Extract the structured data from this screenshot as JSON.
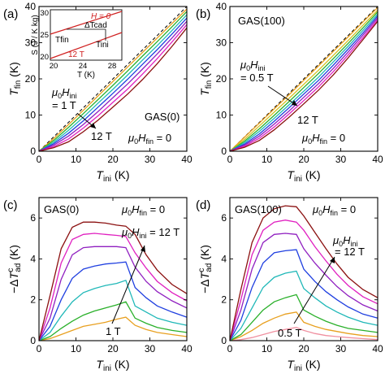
{
  "colors": [
    "#e8a020",
    "#2ab02a",
    "#20b8b8",
    "#2040e0",
    "#9020c0",
    "#e020c0",
    "#8b1010"
  ],
  "chart_data": [
    {
      "type": "line",
      "panel_label": "(a)",
      "xlabel": "T",
      "xlabel_sub": "ini",
      "xlabel_unit": "(K)",
      "ylabel": "T",
      "ylabel_sub": "fin",
      "ylabel_unit": "(K)",
      "xlim": [
        0,
        40
      ],
      "ylim": [
        0,
        40
      ],
      "xticks": [
        "0",
        "10",
        "20",
        "30",
        "40"
      ],
      "yticks": [
        "0",
        "10",
        "20",
        "30",
        "40"
      ],
      "diagonal": true,
      "x": [
        0,
        4,
        8,
        12,
        16,
        20,
        24,
        28,
        32,
        36,
        40
      ],
      "series": [
        {
          "values": [
            0,
            3.5,
            7.4,
            11.3,
            15.3,
            19.3,
            23.3,
            27.3,
            31.3,
            35.3,
            39.3
          ]
        },
        {
          "values": [
            0,
            3,
            6.6,
            10.4,
            14.3,
            18.2,
            22.2,
            26.3,
            30.3,
            34.4,
            38.6
          ]
        },
        {
          "values": [
            0,
            2.5,
            5.8,
            9.4,
            13.3,
            17.1,
            21.1,
            25.2,
            29.2,
            33.4,
            37.7
          ]
        },
        {
          "values": [
            0,
            2.1,
            5,
            8.4,
            12.2,
            16,
            19.9,
            24,
            28.1,
            32.4,
            36.8
          ]
        },
        {
          "values": [
            0,
            1.7,
            4.2,
            7.4,
            11,
            14.8,
            18.6,
            22.7,
            26.9,
            31.3,
            35.9
          ]
        },
        {
          "values": [
            0,
            1.3,
            3.4,
            6.4,
            9.8,
            13.5,
            17.2,
            21.3,
            25.6,
            30.2,
            35
          ]
        },
        {
          "values": [
            0,
            1,
            2.6,
            5.4,
            8.6,
            12.2,
            15.8,
            19.8,
            24.2,
            29,
            34.1
          ]
        }
      ],
      "annotations": {
        "upper": "μ0Hini",
        "upper2": "= 1 T",
        "lower": "12 T",
        "sample": "GAS(0)",
        "field": "μ0Hfin = 0"
      },
      "inset": {
        "xlabel": "T (K)",
        "ylabel": "S (J / K kg)",
        "xlim": [
          20,
          30
        ],
        "ylim": [
          20,
          30
        ],
        "xticks": [
          "20",
          "24",
          "28"
        ],
        "yticks": [
          "20",
          "25",
          "30"
        ],
        "line_h0_label": "H = 0",
        "line_12t_label": "12 T",
        "delta_label": "ΔTcad",
        "tfin_label": "Tfin",
        "tini_label": "Tini"
      }
    },
    {
      "type": "line",
      "panel_label": "(b)",
      "xlabel": "T",
      "xlabel_sub": "ini",
      "xlabel_unit": "(K)",
      "ylabel": "T",
      "ylabel_sub": "fin",
      "ylabel_unit": "(K)",
      "xlim": [
        0,
        40
      ],
      "ylim": [
        0,
        40
      ],
      "xticks": [
        "0",
        "10",
        "20",
        "30",
        "40"
      ],
      "yticks": [
        "0",
        "10",
        "20",
        "30",
        "40"
      ],
      "diagonal": true,
      "x": [
        0,
        4,
        8,
        12,
        16,
        20,
        24,
        28,
        32,
        36,
        40
      ],
      "series": [
        {
          "values": [
            0,
            3.9,
            7.8,
            11.7,
            15.6,
            19.6,
            23.6,
            27.6,
            31.6,
            35.7,
            39.7
          ]
        },
        {
          "values": [
            0,
            3.3,
            7,
            10.8,
            14.6,
            18.5,
            22.4,
            26.5,
            30.6,
            34.8,
            39
          ]
        },
        {
          "values": [
            0,
            2.8,
            6.2,
            9.9,
            13.7,
            17.6,
            21.5,
            25.6,
            29.8,
            34.1,
            38.5
          ]
        },
        {
          "values": [
            0,
            2.4,
            5.5,
            9.1,
            12.8,
            16.6,
            20.5,
            24.7,
            29,
            33.4,
            37.9
          ]
        },
        {
          "values": [
            0,
            2,
            4.8,
            8.3,
            12,
            15.8,
            19.6,
            23.8,
            28.2,
            32.7,
            37.4
          ]
        },
        {
          "values": [
            0,
            1.7,
            4.2,
            7.5,
            11.1,
            14.9,
            18.7,
            22.9,
            27.4,
            32.1,
            36.9
          ]
        },
        {
          "values": [
            0,
            1.4,
            3.6,
            6.7,
            10.3,
            14,
            17.8,
            22,
            26.6,
            31.4,
            36.4
          ]
        },
        {
          "values": [
            0,
            1.1,
            3,
            5.9,
            9.4,
            13.1,
            16.9,
            21.1,
            25.8,
            30.8,
            35.9
          ]
        }
      ],
      "annotations": {
        "upper": "μ0Hini",
        "upper2": "= 0.5 T",
        "lower": "12 T",
        "sample": "GAS(100)",
        "field": "μ0Hfin = 0"
      }
    },
    {
      "type": "line",
      "panel_label": "(c)",
      "xlabel": "T",
      "xlabel_sub": "ini",
      "xlabel_unit": "(K)",
      "ylabel": "−ΔTcad",
      "ylabel_unit": "(K)",
      "xlim": [
        0,
        40
      ],
      "ylim": [
        0,
        7
      ],
      "xticks": [
        "0",
        "10",
        "20",
        "30",
        "40"
      ],
      "yticks": [
        "0",
        "2",
        "4",
        "6"
      ],
      "x": [
        0,
        3,
        6,
        9,
        12,
        15,
        18,
        21,
        23.5,
        26,
        29,
        32,
        36,
        40
      ],
      "series": [
        {
          "values": [
            0,
            0.1,
            0.3,
            0.5,
            0.7,
            0.8,
            0.9,
            1.05,
            1.15,
            0.75,
            0.55,
            0.4,
            0.3,
            0.2
          ]
        },
        {
          "values": [
            0,
            0.2,
            0.6,
            0.95,
            1.25,
            1.45,
            1.6,
            1.75,
            1.9,
            1.1,
            0.85,
            0.65,
            0.5,
            0.4
          ]
        },
        {
          "values": [
            0,
            0.4,
            1.2,
            1.9,
            2.35,
            2.55,
            2.7,
            2.8,
            2.95,
            1.7,
            1.4,
            1.1,
            0.9,
            0.75
          ]
        },
        {
          "values": [
            0,
            0.7,
            2,
            3.05,
            3.5,
            3.65,
            3.75,
            3.8,
            3.85,
            2.6,
            2.1,
            1.7,
            1.4,
            1.15
          ]
        },
        {
          "values": [
            0,
            1.1,
            3,
            4.2,
            4.55,
            4.6,
            4.6,
            4.6,
            4.55,
            3.6,
            2.9,
            2.4,
            1.95,
            1.6
          ]
        },
        {
          "values": [
            0,
            1.6,
            3.8,
            4.95,
            5.2,
            5.25,
            5.2,
            5.15,
            5.1,
            4.3,
            3.55,
            2.9,
            2.35,
            1.95
          ]
        },
        {
          "values": [
            0,
            2.2,
            4.5,
            5.55,
            5.8,
            5.8,
            5.75,
            5.65,
            5.6,
            5.2,
            4.2,
            3.45,
            2.75,
            2.3
          ]
        }
      ],
      "annotations": {
        "sample": "GAS(0)",
        "field": "μ0Hfin = 0",
        "upper": "μ0Hini = 12 T",
        "lower": "1 T"
      }
    },
    {
      "type": "line",
      "panel_label": "(d)",
      "xlabel": "T",
      "xlabel_sub": "ini",
      "xlabel_unit": "(K)",
      "ylabel": "−ΔTcad",
      "ylabel_unit": "(K)",
      "xlim": [
        0,
        40
      ],
      "ylim": [
        0,
        7
      ],
      "xticks": [
        "0",
        "10",
        "20",
        "30",
        "40"
      ],
      "yticks": [
        "0",
        "2",
        "4",
        "6"
      ],
      "x": [
        0,
        3,
        6,
        9,
        12,
        15,
        18,
        20,
        23,
        26,
        29,
        32,
        36,
        40
      ],
      "series": [
        {
          "values": [
            0,
            0.05,
            0.15,
            0.3,
            0.45,
            0.55,
            0.65,
            0.5,
            0.35,
            0.25,
            0.2,
            0.15,
            0.1,
            0.05
          ]
        },
        {
          "values": [
            0,
            0.2,
            0.5,
            0.85,
            1.1,
            1.3,
            1.4,
            0.9,
            0.7,
            0.55,
            0.45,
            0.35,
            0.25,
            0.2
          ]
        },
        {
          "values": [
            0,
            0.3,
            0.9,
            1.5,
            1.9,
            2.1,
            2.25,
            1.5,
            1.2,
            0.95,
            0.75,
            0.6,
            0.5,
            0.4
          ]
        },
        {
          "values": [
            0,
            0.6,
            1.6,
            2.6,
            3.1,
            3.3,
            3.4,
            2.55,
            2.1,
            1.7,
            1.4,
            1.15,
            0.9,
            0.75
          ]
        },
        {
          "values": [
            0,
            1,
            2.6,
            3.8,
            4.3,
            4.4,
            4.45,
            3.5,
            2.9,
            2.4,
            2,
            1.65,
            1.3,
            1.1
          ]
        },
        {
          "values": [
            0,
            1.5,
            3.5,
            4.8,
            5.2,
            5.25,
            5.2,
            4.5,
            3.8,
            3.2,
            2.65,
            2.2,
            1.75,
            1.45
          ]
        },
        {
          "values": [
            0,
            2,
            4.2,
            5.4,
            5.8,
            5.9,
            5.8,
            5.4,
            4.6,
            3.9,
            3.25,
            2.7,
            2.15,
            1.8
          ]
        },
        {
          "values": [
            0,
            2.5,
            4.8,
            6.0,
            6.45,
            6.6,
            6.55,
            6.1,
            5.3,
            4.5,
            3.75,
            3.1,
            2.5,
            2.1
          ]
        }
      ],
      "annotations": {
        "sample": "GAS(100)",
        "field": "μ0Hfin = 0",
        "upper": "μ0Hini",
        "upper2": "= 12 T",
        "lower": "0.5 T"
      }
    }
  ]
}
